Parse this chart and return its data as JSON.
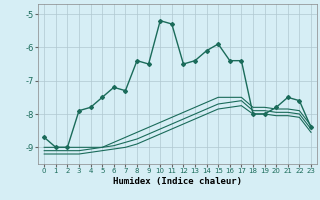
{
  "xlabel": "Humidex (Indice chaleur)",
  "ylabel": "",
  "bg_color": "#d6eef5",
  "plot_bg_color": "#d6eef5",
  "grid_color": "#b0c8d0",
  "line_color": "#1a6b5a",
  "xlim": [
    -0.5,
    23.5
  ],
  "ylim": [
    -9.5,
    -4.7
  ],
  "yticks": [
    -9,
    -8,
    -7,
    -6,
    -5
  ],
  "xticks": [
    0,
    1,
    2,
    3,
    4,
    5,
    6,
    7,
    8,
    9,
    10,
    11,
    12,
    13,
    14,
    15,
    16,
    17,
    18,
    19,
    20,
    21,
    22,
    23
  ],
  "main_x": [
    0,
    1,
    2,
    3,
    4,
    5,
    6,
    7,
    8,
    9,
    10,
    11,
    12,
    13,
    14,
    15,
    16,
    17,
    18,
    19,
    20,
    21,
    22,
    23
  ],
  "main_y": [
    -8.7,
    -9.0,
    -9.0,
    -7.9,
    -7.8,
    -7.5,
    -7.2,
    -7.3,
    -6.4,
    -6.5,
    -5.2,
    -5.3,
    -6.5,
    -6.4,
    -6.1,
    -5.9,
    -6.4,
    -6.4,
    -8.0,
    -8.0,
    -7.8,
    -7.5,
    -7.6,
    -8.4
  ],
  "line1_x": [
    0,
    1,
    2,
    3,
    4,
    5,
    6,
    7,
    8,
    9,
    10,
    11,
    12,
    13,
    14,
    15,
    16,
    17,
    18,
    19,
    20,
    21,
    22,
    23
  ],
  "line1_y": [
    -9.0,
    -9.0,
    -9.0,
    -9.0,
    -9.0,
    -9.0,
    -8.85,
    -8.7,
    -8.55,
    -8.4,
    -8.25,
    -8.1,
    -7.95,
    -7.8,
    -7.65,
    -7.5,
    -7.5,
    -7.5,
    -7.8,
    -7.8,
    -7.85,
    -7.85,
    -7.9,
    -8.35
  ],
  "line2_x": [
    0,
    1,
    2,
    3,
    4,
    5,
    6,
    7,
    8,
    9,
    10,
    11,
    12,
    13,
    14,
    15,
    16,
    17,
    18,
    19,
    20,
    21,
    22,
    23
  ],
  "line2_y": [
    -9.1,
    -9.1,
    -9.1,
    -9.1,
    -9.05,
    -9.0,
    -8.95,
    -8.85,
    -8.75,
    -8.6,
    -8.45,
    -8.3,
    -8.15,
    -8.0,
    -7.85,
    -7.7,
    -7.65,
    -7.6,
    -7.9,
    -7.9,
    -7.95,
    -7.95,
    -8.0,
    -8.45
  ],
  "line3_x": [
    0,
    1,
    2,
    3,
    4,
    5,
    6,
    7,
    8,
    9,
    10,
    11,
    12,
    13,
    14,
    15,
    16,
    17,
    18,
    19,
    20,
    21,
    22,
    23
  ],
  "line3_y": [
    -9.2,
    -9.2,
    -9.2,
    -9.2,
    -9.15,
    -9.1,
    -9.05,
    -9.0,
    -8.9,
    -8.75,
    -8.6,
    -8.45,
    -8.3,
    -8.15,
    -8.0,
    -7.85,
    -7.8,
    -7.75,
    -8.0,
    -8.0,
    -8.05,
    -8.05,
    -8.1,
    -8.55
  ]
}
